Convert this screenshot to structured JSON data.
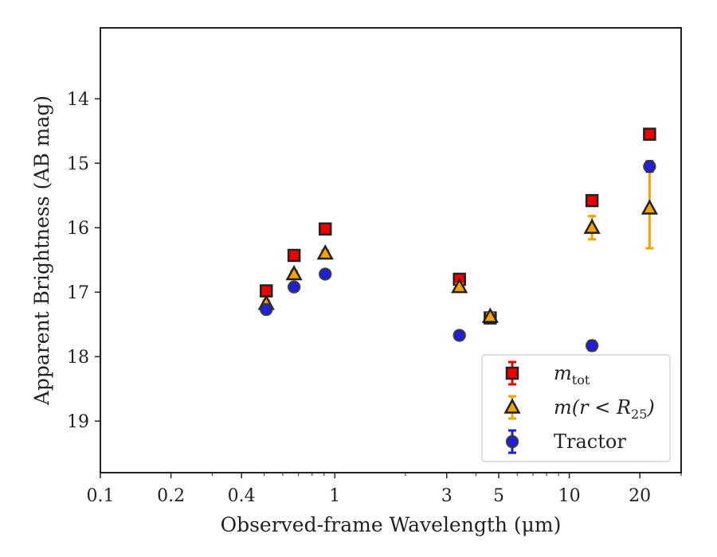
{
  "chart_data": {
    "type": "scatter",
    "xlabel": "Observed-frame Wavelength (μm)",
    "ylabel": "Apparent Brightness (AB mag)",
    "x_scale": "log",
    "xlim": [
      0.1,
      30
    ],
    "ylim": [
      19.8,
      12.9
    ],
    "y_inverted": true,
    "grid": false,
    "legend_position": "lower-right",
    "x_ticks": [
      {
        "value": 0.1,
        "label": "0.1"
      },
      {
        "value": 0.2,
        "label": "0.2"
      },
      {
        "value": 0.4,
        "label": "0.4"
      },
      {
        "value": 1,
        "label": "1"
      },
      {
        "value": 3,
        "label": "3"
      },
      {
        "value": 5,
        "label": "5"
      },
      {
        "value": 10,
        "label": "10"
      },
      {
        "value": 20,
        "label": "20"
      }
    ],
    "y_ticks": [
      {
        "value": 14,
        "label": "14"
      },
      {
        "value": 15,
        "label": "15"
      },
      {
        "value": 16,
        "label": "16"
      },
      {
        "value": 17,
        "label": "17"
      },
      {
        "value": 18,
        "label": "18"
      },
      {
        "value": 19,
        "label": "19"
      }
    ],
    "series": [
      {
        "name": "m_tot",
        "legend_main": "m",
        "legend_sub": "tot",
        "marker": "square",
        "color": "#ee0000",
        "edge": "#222222",
        "err_color": "#ee0000",
        "points": [
          {
            "x": 0.51,
            "y": 16.98,
            "err": 0.05
          },
          {
            "x": 0.67,
            "y": 16.43,
            "err": 0.05
          },
          {
            "x": 0.91,
            "y": 16.02,
            "err": 0.05
          },
          {
            "x": 3.4,
            "y": 16.8,
            "err": 0.05
          },
          {
            "x": 4.6,
            "y": 17.4,
            "err": 0.05
          },
          {
            "x": 12.5,
            "y": 15.58,
            "err": 0.05
          },
          {
            "x": 22,
            "y": 14.55,
            "err": 0.05
          }
        ]
      },
      {
        "name": "m(r < R25)",
        "legend_main": "m(r < R",
        "legend_sub": "25",
        "legend_tail": ")",
        "marker": "triangle",
        "color": "#f5a300",
        "edge": "#222222",
        "err_color": "#f5a300",
        "points": [
          {
            "x": 0.51,
            "y": 17.18,
            "err": 0.05
          },
          {
            "x": 0.67,
            "y": 16.72,
            "err": 0.05
          },
          {
            "x": 0.91,
            "y": 16.4,
            "err": 0.05
          },
          {
            "x": 3.4,
            "y": 16.92,
            "err": 0.05
          },
          {
            "x": 4.6,
            "y": 17.38,
            "err": 0.05
          },
          {
            "x": 12.5,
            "y": 16.0,
            "err": 0.18
          },
          {
            "x": 22,
            "y": 15.7,
            "err": 0.62
          }
        ]
      },
      {
        "name": "Tractor",
        "legend_main": "Tractor",
        "marker": "circle",
        "color": "#1f1fe0",
        "edge": "#333333",
        "err_color": "#1f1fe0",
        "points": [
          {
            "x": 0.51,
            "y": 17.27,
            "err": 0.05
          },
          {
            "x": 0.67,
            "y": 16.92,
            "err": 0.05
          },
          {
            "x": 0.91,
            "y": 16.72,
            "err": 0.05
          },
          {
            "x": 3.4,
            "y": 17.67,
            "err": 0.06
          },
          {
            "x": 12.5,
            "y": 17.83,
            "err": 0.07
          },
          {
            "x": 22,
            "y": 15.05,
            "err": 0.08
          }
        ]
      }
    ]
  }
}
